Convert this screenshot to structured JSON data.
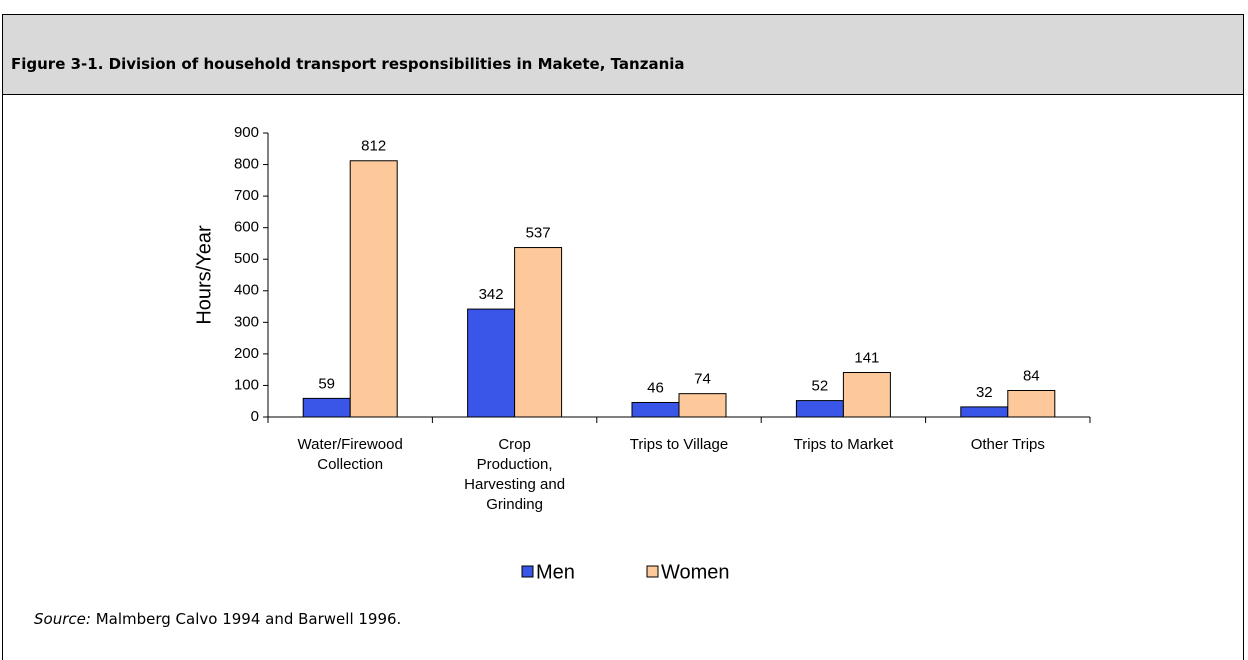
{
  "figure_title": "Figure 3-1. Division of household transport responsibilities in Makete, Tanzania",
  "source_label": "Source:",
  "source_text": "Malmberg Calvo 1994 and Barwell 1996.",
  "chart_data": {
    "type": "bar",
    "y_label": "Hours/Year",
    "categories": [
      "Water/Firewood Collection",
      "Crop Production, Harvesting and Grinding",
      "Trips to Village",
      "Trips to Market",
      "Other Trips"
    ],
    "series": [
      {
        "name": "Men",
        "color": "#3a56e8",
        "values": [
          59,
          342,
          46,
          52,
          32
        ]
      },
      {
        "name": "Women",
        "color": "#fdc89a",
        "values": [
          812,
          537,
          74,
          141,
          84
        ]
      }
    ],
    "ylim": [
      0,
      900
    ],
    "yticks": [
      0,
      100,
      200,
      300,
      400,
      500,
      600,
      700,
      800,
      900
    ],
    "grid": false,
    "legend": "bottom"
  }
}
